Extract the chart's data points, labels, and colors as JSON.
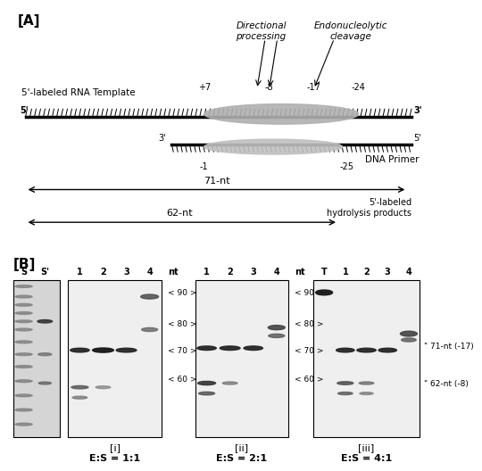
{
  "panel_A_label": "[A]",
  "panel_B_label": "[B]",
  "rna_label": "5'-labeled RNA Template",
  "dna_label": "DNA Primer",
  "dir_label": "Directional\nprocessing",
  "endo_label": "Endonucleolytic\ncleavage",
  "pos_p7": "+7",
  "pos_m8": "-8",
  "pos_m17": "-17",
  "pos_m24": "-24",
  "pos_m1": "-1",
  "pos_m25": "-25",
  "nt71": "71-nt",
  "nt62": "62-nt",
  "hydrolysis": "5'-labeled\nhydrolysis products",
  "nt_markers": [
    90,
    80,
    70,
    60
  ],
  "label_71": "\" 71-nt (-17)",
  "label_62": "\" 62-nt (-8)",
  "sub_i": "[i]",
  "es_i": "E:S = 1:1",
  "sub_ii": "[ii]",
  "es_ii": "E:S = 2:1",
  "sub_iii": "[iii]",
  "es_iii": "E:S = 4:1",
  "nt_label": "nt",
  "T_label": "T",
  "fig_w": 4.74,
  "fig_h": 5.13
}
